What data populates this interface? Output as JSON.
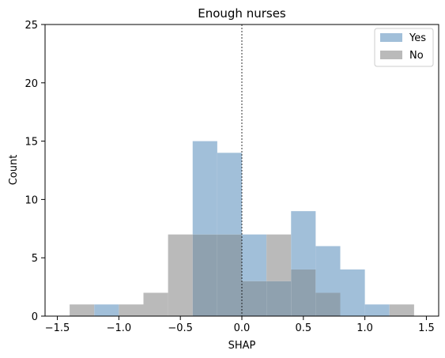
{
  "chart_data": {
    "type": "histogram",
    "title": "Enough nurses",
    "xlabel": "SHAP",
    "ylabel": "Count",
    "xlim": [
      -1.6,
      1.6
    ],
    "ylim": [
      0,
      25
    ],
    "xticks": [
      -1.5,
      -1.0,
      -0.5,
      0.0,
      0.5,
      1.0,
      1.5
    ],
    "xtick_labels": [
      "−1.5",
      "−1.0",
      "−0.5",
      "0.0",
      "0.5",
      "1.0",
      "1.5"
    ],
    "yticks": [
      0,
      5,
      10,
      15,
      20,
      25
    ],
    "ytick_labels": [
      "0",
      "5",
      "10",
      "15",
      "20",
      "25"
    ],
    "reference_line": {
      "x": 0,
      "style": "dotted"
    },
    "legend": {
      "position": "top-right"
    },
    "bin_edges": [
      -1.4,
      -1.2,
      -1.0,
      -0.8,
      -0.6,
      -0.4,
      -0.2,
      0.0,
      0.2,
      0.4,
      0.6,
      0.8,
      1.0,
      1.2,
      1.4
    ],
    "series": [
      {
        "name": "Yes",
        "color": "#a1bfd9",
        "values": [
          0,
          1,
          0,
          0,
          0,
          15,
          14,
          7,
          3,
          9,
          6,
          4,
          1,
          0
        ]
      },
      {
        "name": "No",
        "color": "#bababa",
        "values": [
          1,
          0,
          1,
          2,
          7,
          7,
          7,
          3,
          7,
          4,
          2,
          0,
          0,
          1
        ]
      }
    ],
    "overlap_color": "#8fa1af"
  }
}
